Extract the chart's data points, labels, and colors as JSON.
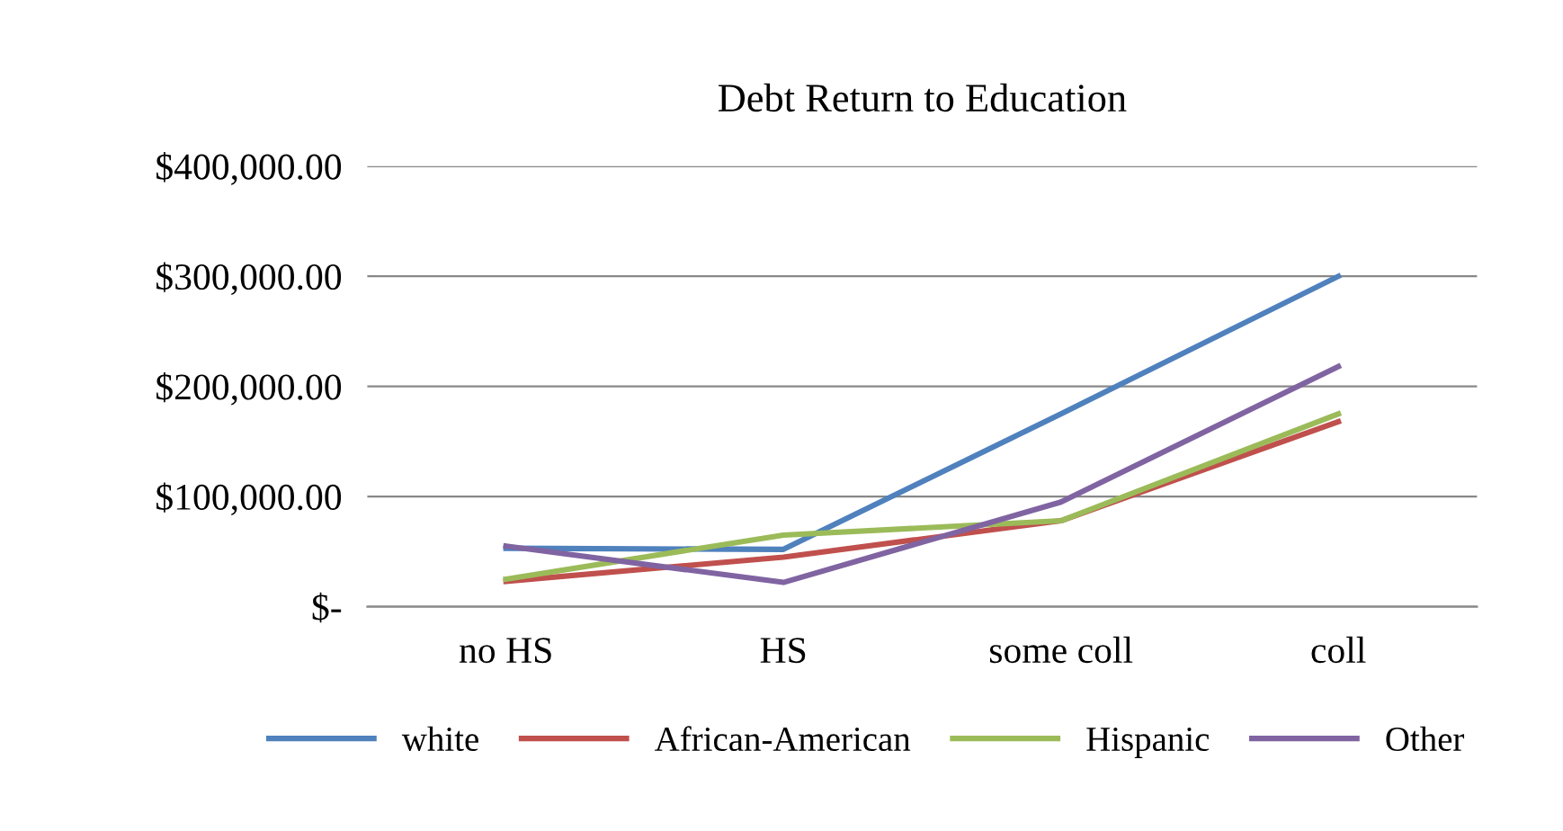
{
  "chart_data": {
    "type": "line",
    "title": "Debt Return to Education",
    "categories": [
      "no HS",
      "HS",
      "some coll",
      "coll"
    ],
    "series": [
      {
        "name": "white",
        "color": "#4f81bd",
        "values": [
          53000,
          52000,
          175000,
          300000
        ]
      },
      {
        "name": "African-American",
        "color": "#c0504d",
        "values": [
          23000,
          45000,
          78000,
          168000
        ]
      },
      {
        "name": "Hispanic",
        "color": "#9bbb59",
        "values": [
          25000,
          65000,
          78000,
          175000
        ]
      },
      {
        "name": "Other",
        "color": "#8064a2",
        "values": [
          55000,
          22000,
          95000,
          218000
        ]
      }
    ],
    "ylim": [
      0,
      400000
    ],
    "yticks": [
      {
        "value": 0,
        "label": "$-"
      },
      {
        "value": 100000,
        "label": "$100,000.00"
      },
      {
        "value": 200000,
        "label": "$200,000.00"
      },
      {
        "value": 300000,
        "label": "$300,000.00"
      },
      {
        "value": 400000,
        "label": "$400,000.00"
      }
    ],
    "grid": "y",
    "legend": "bottom",
    "marker": "none",
    "line_style": "solid"
  }
}
